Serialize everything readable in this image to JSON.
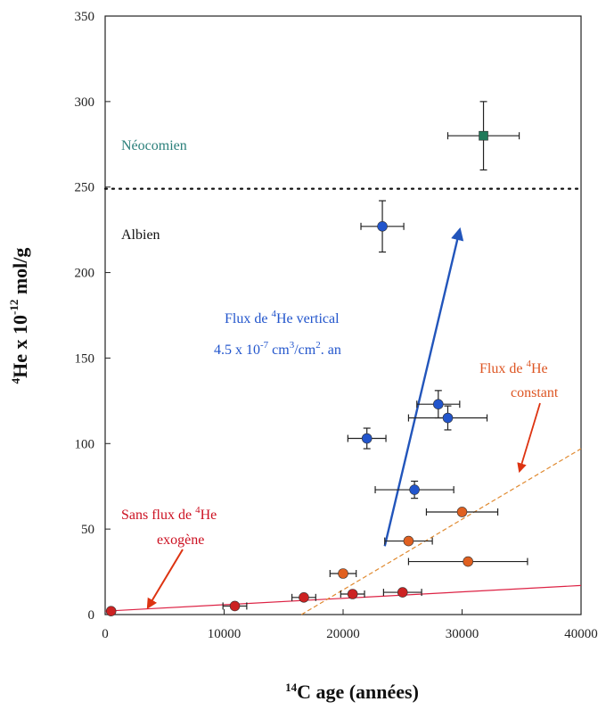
{
  "chart_data": {
    "type": "scatter",
    "xlabel": {
      "sup": "14",
      "text": "C age (années)"
    },
    "ylabel": {
      "sup": "4",
      "main": "He x 10",
      "sup2": "-12",
      "unit": " mol/g"
    },
    "xlim": [
      0,
      40000
    ],
    "ylim": [
      0,
      350
    ],
    "xticks": [
      "0",
      "10000",
      "20000",
      "30000",
      "40000"
    ],
    "yticks": [
      "0",
      "50",
      "100",
      "150",
      "200",
      "250",
      "300",
      "350"
    ],
    "xtick_values": [
      0,
      10000,
      20000,
      30000,
      40000
    ],
    "ytick_values": [
      0,
      50,
      100,
      150,
      200,
      250,
      300,
      350
    ],
    "grid": false,
    "series": [
      {
        "color": "#cc2222",
        "marker": "circle",
        "points": [
          {
            "x": 500,
            "y": 2,
            "xerr": 0,
            "yerr": 0
          },
          {
            "x": 10900,
            "y": 5,
            "xerr": 1000,
            "yerr": 0
          },
          {
            "x": 16700,
            "y": 10,
            "xerr": 1000,
            "yerr": 0
          },
          {
            "x": 20800,
            "y": 12,
            "xerr": 1000,
            "yerr": 0
          },
          {
            "x": 25000,
            "y": 13,
            "xerr": 1600,
            "yerr": 0
          }
        ]
      },
      {
        "color": "#e06020",
        "marker": "circle",
        "points": [
          {
            "x": 20000,
            "y": 24,
            "xerr": 1100,
            "yerr": 0
          },
          {
            "x": 25500,
            "y": 43,
            "xerr": 2000,
            "yerr": 0
          },
          {
            "x": 30000,
            "y": 60,
            "xerr": 3000,
            "yerr": 0
          },
          {
            "x": 30500,
            "y": 31,
            "xerr": 5000,
            "yerr": 0
          }
        ]
      },
      {
        "color": "#2255cc",
        "marker": "circle",
        "points": [
          {
            "x": 23300,
            "y": 227,
            "xerr": 1800,
            "yerr": 15
          },
          {
            "x": 22000,
            "y": 103,
            "xerr": 1600,
            "yerr": 6
          },
          {
            "x": 26000,
            "y": 73,
            "xerr": 3300,
            "yerr": 5
          },
          {
            "x": 28000,
            "y": 123,
            "xerr": 1800,
            "yerr": 8
          },
          {
            "x": 28800,
            "y": 115,
            "xerr": 3300,
            "yerr": 7
          }
        ]
      },
      {
        "color": "#1f7a5a",
        "marker": "square",
        "points": [
          {
            "x": 31800,
            "y": 280,
            "xerr": 3000,
            "yerr": 20
          }
        ]
      }
    ],
    "lines": [
      {
        "name": "sans-flux",
        "color": "#dd2244",
        "style": "solid",
        "x": [
          0,
          40000
        ],
        "y": [
          2,
          17
        ]
      },
      {
        "name": "flux-constant",
        "color": "#e08a30",
        "style": "dashed",
        "x": [
          16500,
          40000
        ],
        "y": [
          0,
          97
        ]
      },
      {
        "name": "neocomien-albien-boundary",
        "color": "#111111",
        "style": "dotted",
        "x": [
          0,
          40000
        ],
        "y": [
          249,
          249
        ]
      }
    ],
    "arrows": [
      {
        "name": "flux-vertical",
        "color": "#2255bb",
        "x": [
          23500,
          29800
        ],
        "y": [
          40,
          225
        ]
      }
    ],
    "annotations": {
      "neocomien": "Néocomien",
      "albien": "Albien",
      "flux_vertical_line1_a": "Flux de ",
      "flux_vertical_line1_sup": "4",
      "flux_vertical_line1_b": "He vertical",
      "flux_vertical_line2_a": "4.5 x 10",
      "flux_vertical_line2_sup1": "-7",
      "flux_vertical_line2_b": " cm",
      "flux_vertical_line2_sup2": "3",
      "flux_vertical_line2_c": "/cm",
      "flux_vertical_line2_sup3": "2",
      "flux_vertical_line2_d": ". an",
      "flux_constant_line1_a": "Flux de ",
      "flux_constant_line1_sup": "4",
      "flux_constant_line1_b": "He",
      "flux_constant_line2": "constant",
      "sans_flux_line1_a": "Sans flux de ",
      "sans_flux_line1_sup": "4",
      "sans_flux_line1_b": "He",
      "sans_flux_line2": "exogène"
    },
    "annotation_colors": {
      "neocomien": "#2a7f7a",
      "albien": "#111111",
      "flux_vertical": "#2255cc",
      "flux_constant": "#dd5522",
      "sans_flux": "#cc1122"
    }
  }
}
